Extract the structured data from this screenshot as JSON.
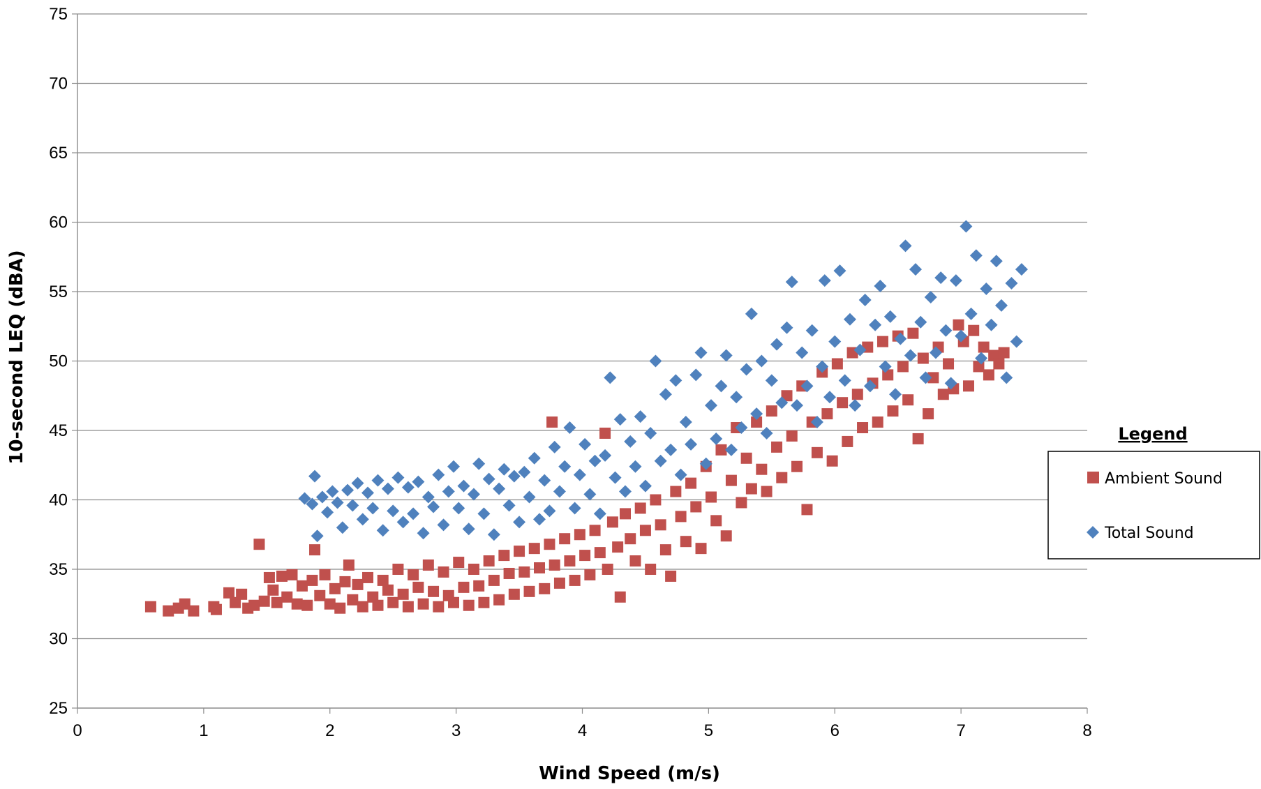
{
  "chart_data": {
    "type": "scatter",
    "title": "",
    "xlabel": "Wind Speed (m/s)",
    "ylabel": "10-second LEQ (dBA)",
    "xlim": [
      0,
      8
    ],
    "ylim": [
      25,
      75
    ],
    "x_ticks": [
      "0",
      "1",
      "2",
      "3",
      "4",
      "5",
      "6",
      "7",
      "8"
    ],
    "y_ticks": [
      "25",
      "30",
      "35",
      "40",
      "45",
      "50",
      "55",
      "60",
      "65",
      "70",
      "75"
    ],
    "grid": "horizontal",
    "legend": {
      "title": "Legend",
      "position": "right",
      "entries": [
        "Ambient Sound",
        "Total Sound"
      ]
    },
    "series": [
      {
        "name": "Ambient Sound",
        "marker": "square",
        "color": "#C0504D",
        "points": [
          [
            0.58,
            32.3
          ],
          [
            0.72,
            32.0
          ],
          [
            0.8,
            32.2
          ],
          [
            0.85,
            32.5
          ],
          [
            0.92,
            32.0
          ],
          [
            1.08,
            32.3
          ],
          [
            1.1,
            32.1
          ],
          [
            1.2,
            33.3
          ],
          [
            1.25,
            32.6
          ],
          [
            1.3,
            33.2
          ],
          [
            1.35,
            32.2
          ],
          [
            1.4,
            32.4
          ],
          [
            1.44,
            36.8
          ],
          [
            1.48,
            32.7
          ],
          [
            1.52,
            34.4
          ],
          [
            1.55,
            33.5
          ],
          [
            1.58,
            32.6
          ],
          [
            1.62,
            34.5
          ],
          [
            1.66,
            33.0
          ],
          [
            1.7,
            34.6
          ],
          [
            1.74,
            32.5
          ],
          [
            1.78,
            33.8
          ],
          [
            1.82,
            32.4
          ],
          [
            1.86,
            34.2
          ],
          [
            1.88,
            36.4
          ],
          [
            1.92,
            33.1
          ],
          [
            1.96,
            34.6
          ],
          [
            2.0,
            32.5
          ],
          [
            2.04,
            33.6
          ],
          [
            2.08,
            32.2
          ],
          [
            2.12,
            34.1
          ],
          [
            2.15,
            35.3
          ],
          [
            2.18,
            32.8
          ],
          [
            2.22,
            33.9
          ],
          [
            2.26,
            32.3
          ],
          [
            2.3,
            34.4
          ],
          [
            2.34,
            33.0
          ],
          [
            2.38,
            32.4
          ],
          [
            2.42,
            34.2
          ],
          [
            2.46,
            33.5
          ],
          [
            2.5,
            32.6
          ],
          [
            2.54,
            35.0
          ],
          [
            2.58,
            33.2
          ],
          [
            2.62,
            32.3
          ],
          [
            2.66,
            34.6
          ],
          [
            2.7,
            33.7
          ],
          [
            2.74,
            32.5
          ],
          [
            2.78,
            35.3
          ],
          [
            2.82,
            33.4
          ],
          [
            2.86,
            32.3
          ],
          [
            2.9,
            34.8
          ],
          [
            2.94,
            33.1
          ],
          [
            2.98,
            32.6
          ],
          [
            3.02,
            35.5
          ],
          [
            3.06,
            33.7
          ],
          [
            3.1,
            32.4
          ],
          [
            3.14,
            35.0
          ],
          [
            3.18,
            33.8
          ],
          [
            3.22,
            32.6
          ],
          [
            3.26,
            35.6
          ],
          [
            3.3,
            34.2
          ],
          [
            3.34,
            32.8
          ],
          [
            3.38,
            36.0
          ],
          [
            3.42,
            34.7
          ],
          [
            3.46,
            33.2
          ],
          [
            3.5,
            36.3
          ],
          [
            3.54,
            34.8
          ],
          [
            3.58,
            33.4
          ],
          [
            3.62,
            36.5
          ],
          [
            3.66,
            35.1
          ],
          [
            3.7,
            33.6
          ],
          [
            3.74,
            36.8
          ],
          [
            3.76,
            45.6
          ],
          [
            3.78,
            35.3
          ],
          [
            3.82,
            34.0
          ],
          [
            3.86,
            37.2
          ],
          [
            3.9,
            35.6
          ],
          [
            3.94,
            34.2
          ],
          [
            3.98,
            37.5
          ],
          [
            4.02,
            36.0
          ],
          [
            4.06,
            34.6
          ],
          [
            4.1,
            37.8
          ],
          [
            4.14,
            36.2
          ],
          [
            4.18,
            44.8
          ],
          [
            4.2,
            35.0
          ],
          [
            4.24,
            38.4
          ],
          [
            4.28,
            36.6
          ],
          [
            4.3,
            33.0
          ],
          [
            4.34,
            39.0
          ],
          [
            4.38,
            37.2
          ],
          [
            4.42,
            35.6
          ],
          [
            4.46,
            39.4
          ],
          [
            4.5,
            37.8
          ],
          [
            4.54,
            35.0
          ],
          [
            4.58,
            40.0
          ],
          [
            4.62,
            38.2
          ],
          [
            4.66,
            36.4
          ],
          [
            4.7,
            34.5
          ],
          [
            4.74,
            40.6
          ],
          [
            4.78,
            38.8
          ],
          [
            4.82,
            37.0
          ],
          [
            4.86,
            41.2
          ],
          [
            4.9,
            39.5
          ],
          [
            4.94,
            36.5
          ],
          [
            4.98,
            42.4
          ],
          [
            5.02,
            40.2
          ],
          [
            5.06,
            38.5
          ],
          [
            5.1,
            43.6
          ],
          [
            5.14,
            37.4
          ],
          [
            5.18,
            41.4
          ],
          [
            5.22,
            45.2
          ],
          [
            5.26,
            39.8
          ],
          [
            5.3,
            43.0
          ],
          [
            5.34,
            40.8
          ],
          [
            5.38,
            45.6
          ],
          [
            5.42,
            42.2
          ],
          [
            5.46,
            40.6
          ],
          [
            5.5,
            46.4
          ],
          [
            5.54,
            43.8
          ],
          [
            5.58,
            41.6
          ],
          [
            5.62,
            47.5
          ],
          [
            5.66,
            44.6
          ],
          [
            5.7,
            42.4
          ],
          [
            5.74,
            48.2
          ],
          [
            5.78,
            39.3
          ],
          [
            5.82,
            45.6
          ],
          [
            5.86,
            43.4
          ],
          [
            5.9,
            49.2
          ],
          [
            5.94,
            46.2
          ],
          [
            5.98,
            42.8
          ],
          [
            6.02,
            49.8
          ],
          [
            6.06,
            47.0
          ],
          [
            6.1,
            44.2
          ],
          [
            6.14,
            50.6
          ],
          [
            6.18,
            47.6
          ],
          [
            6.22,
            45.2
          ],
          [
            6.26,
            51.0
          ],
          [
            6.3,
            48.4
          ],
          [
            6.34,
            45.6
          ],
          [
            6.38,
            51.4
          ],
          [
            6.42,
            49.0
          ],
          [
            6.46,
            46.4
          ],
          [
            6.5,
            51.8
          ],
          [
            6.54,
            49.6
          ],
          [
            6.58,
            47.2
          ],
          [
            6.62,
            52.0
          ],
          [
            6.66,
            44.4
          ],
          [
            6.7,
            50.2
          ],
          [
            6.74,
            46.2
          ],
          [
            6.78,
            48.8
          ],
          [
            6.82,
            51.0
          ],
          [
            6.86,
            47.6
          ],
          [
            6.9,
            49.8
          ],
          [
            6.94,
            48.0
          ],
          [
            6.98,
            52.6
          ],
          [
            7.02,
            51.4
          ],
          [
            7.06,
            48.2
          ],
          [
            7.1,
            52.2
          ],
          [
            7.14,
            49.6
          ],
          [
            7.18,
            51.0
          ],
          [
            7.22,
            49.0
          ],
          [
            7.26,
            50.4
          ],
          [
            7.3,
            49.8
          ],
          [
            7.34,
            50.6
          ]
        ]
      },
      {
        "name": "Total Sound",
        "marker": "diamond",
        "color": "#4F81BD",
        "points": [
          [
            1.8,
            40.1
          ],
          [
            1.86,
            39.7
          ],
          [
            1.88,
            41.7
          ],
          [
            1.9,
            37.4
          ],
          [
            1.94,
            40.2
          ],
          [
            1.98,
            39.1
          ],
          [
            2.02,
            40.6
          ],
          [
            2.06,
            39.8
          ],
          [
            2.1,
            38.0
          ],
          [
            2.14,
            40.7
          ],
          [
            2.18,
            39.6
          ],
          [
            2.22,
            41.2
          ],
          [
            2.26,
            38.6
          ],
          [
            2.3,
            40.5
          ],
          [
            2.34,
            39.4
          ],
          [
            2.38,
            41.4
          ],
          [
            2.42,
            37.8
          ],
          [
            2.46,
            40.8
          ],
          [
            2.5,
            39.2
          ],
          [
            2.54,
            41.6
          ],
          [
            2.58,
            38.4
          ],
          [
            2.62,
            40.9
          ],
          [
            2.66,
            39.0
          ],
          [
            2.7,
            41.3
          ],
          [
            2.74,
            37.6
          ],
          [
            2.78,
            40.2
          ],
          [
            2.82,
            39.5
          ],
          [
            2.86,
            41.8
          ],
          [
            2.9,
            38.2
          ],
          [
            2.94,
            40.6
          ],
          [
            2.98,
            42.4
          ],
          [
            3.02,
            39.4
          ],
          [
            3.06,
            41.0
          ],
          [
            3.1,
            37.9
          ],
          [
            3.14,
            40.4
          ],
          [
            3.18,
            42.6
          ],
          [
            3.22,
            39.0
          ],
          [
            3.26,
            41.5
          ],
          [
            3.3,
            37.5
          ],
          [
            3.34,
            40.8
          ],
          [
            3.38,
            42.2
          ],
          [
            3.42,
            39.6
          ],
          [
            3.46,
            41.7
          ],
          [
            3.5,
            38.4
          ],
          [
            3.54,
            42.0
          ],
          [
            3.58,
            40.2
          ],
          [
            3.62,
            43.0
          ],
          [
            3.66,
            38.6
          ],
          [
            3.7,
            41.4
          ],
          [
            3.74,
            39.2
          ],
          [
            3.78,
            43.8
          ],
          [
            3.82,
            40.6
          ],
          [
            3.86,
            42.4
          ],
          [
            3.9,
            45.2
          ],
          [
            3.94,
            39.4
          ],
          [
            3.98,
            41.8
          ],
          [
            4.02,
            44.0
          ],
          [
            4.06,
            40.4
          ],
          [
            4.1,
            42.8
          ],
          [
            4.14,
            39.0
          ],
          [
            4.18,
            43.2
          ],
          [
            4.22,
            48.8
          ],
          [
            4.26,
            41.6
          ],
          [
            4.3,
            45.8
          ],
          [
            4.34,
            40.6
          ],
          [
            4.38,
            44.2
          ],
          [
            4.42,
            42.4
          ],
          [
            4.46,
            46.0
          ],
          [
            4.5,
            41.0
          ],
          [
            4.54,
            44.8
          ],
          [
            4.58,
            50.0
          ],
          [
            4.62,
            42.8
          ],
          [
            4.66,
            47.6
          ],
          [
            4.7,
            43.6
          ],
          [
            4.74,
            48.6
          ],
          [
            4.78,
            41.8
          ],
          [
            4.82,
            45.6
          ],
          [
            4.86,
            44.0
          ],
          [
            4.9,
            49.0
          ],
          [
            4.94,
            50.6
          ],
          [
            4.98,
            42.6
          ],
          [
            5.02,
            46.8
          ],
          [
            5.06,
            44.4
          ],
          [
            5.1,
            48.2
          ],
          [
            5.14,
            50.4
          ],
          [
            5.18,
            43.6
          ],
          [
            5.22,
            47.4
          ],
          [
            5.26,
            45.2
          ],
          [
            5.3,
            49.4
          ],
          [
            5.34,
            53.4
          ],
          [
            5.38,
            46.2
          ],
          [
            5.42,
            50.0
          ],
          [
            5.46,
            44.8
          ],
          [
            5.5,
            48.6
          ],
          [
            5.54,
            51.2
          ],
          [
            5.58,
            47.0
          ],
          [
            5.62,
            52.4
          ],
          [
            5.66,
            55.7
          ],
          [
            5.7,
            46.8
          ],
          [
            5.74,
            50.6
          ],
          [
            5.78,
            48.2
          ],
          [
            5.82,
            52.2
          ],
          [
            5.86,
            45.6
          ],
          [
            5.9,
            49.6
          ],
          [
            5.92,
            55.8
          ],
          [
            5.96,
            47.4
          ],
          [
            6.0,
            51.4
          ],
          [
            6.04,
            56.5
          ],
          [
            6.08,
            48.6
          ],
          [
            6.12,
            53.0
          ],
          [
            6.16,
            46.8
          ],
          [
            6.2,
            50.8
          ],
          [
            6.24,
            54.4
          ],
          [
            6.28,
            48.2
          ],
          [
            6.32,
            52.6
          ],
          [
            6.36,
            55.4
          ],
          [
            6.4,
            49.6
          ],
          [
            6.44,
            53.2
          ],
          [
            6.48,
            47.6
          ],
          [
            6.52,
            51.6
          ],
          [
            6.56,
            58.3
          ],
          [
            6.6,
            50.4
          ],
          [
            6.64,
            56.6
          ],
          [
            6.68,
            52.8
          ],
          [
            6.72,
            48.8
          ],
          [
            6.76,
            54.6
          ],
          [
            6.8,
            50.6
          ],
          [
            6.84,
            56.0
          ],
          [
            6.88,
            52.2
          ],
          [
            6.92,
            48.4
          ],
          [
            6.96,
            55.8
          ],
          [
            7.0,
            51.8
          ],
          [
            7.04,
            59.7
          ],
          [
            7.08,
            53.4
          ],
          [
            7.12,
            57.6
          ],
          [
            7.16,
            50.2
          ],
          [
            7.2,
            55.2
          ],
          [
            7.24,
            52.6
          ],
          [
            7.28,
            57.2
          ],
          [
            7.32,
            54.0
          ],
          [
            7.36,
            48.8
          ],
          [
            7.4,
            55.6
          ],
          [
            7.44,
            51.4
          ],
          [
            7.48,
            56.6
          ]
        ]
      }
    ]
  }
}
